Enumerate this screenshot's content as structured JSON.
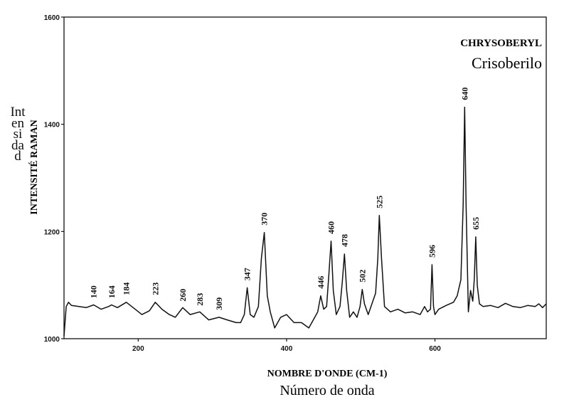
{
  "chart_data": {
    "type": "line",
    "title": "CHRYSOBERYL",
    "subtitle": "Crisoberilo",
    "xlabel": "NOMBRE D'ONDE (CM-1)",
    "xlabel_sub": "Número de onda",
    "ylabel": "INTENSITÉ RAMAN",
    "ylabel_sub": "Intensidad",
    "xlim": [
      100,
      750
    ],
    "ylim": [
      1000,
      1600
    ],
    "xticks": [
      200,
      400,
      600
    ],
    "yticks": [
      1000,
      1200,
      1400,
      1600
    ],
    "xtick_labels": [
      "200",
      "400",
      "600"
    ],
    "ytick_labels": [
      "1000",
      "1200",
      "1400",
      "1600"
    ],
    "grid": false,
    "peaks": [
      {
        "label": "140",
        "x": 140,
        "y": 1062
      },
      {
        "label": "164",
        "x": 164,
        "y": 1062
      },
      {
        "label": "184",
        "x": 184,
        "y": 1068
      },
      {
        "label": "223",
        "x": 223,
        "y": 1068
      },
      {
        "label": "260",
        "x": 260,
        "y": 1056
      },
      {
        "label": "283",
        "x": 283,
        "y": 1048
      },
      {
        "label": "309",
        "x": 309,
        "y": 1040
      },
      {
        "label": "347",
        "x": 347,
        "y": 1095
      },
      {
        "label": "370",
        "x": 370,
        "y": 1198
      },
      {
        "label": "446",
        "x": 446,
        "y": 1080
      },
      {
        "label": "460",
        "x": 460,
        "y": 1182
      },
      {
        "label": "478",
        "x": 478,
        "y": 1158
      },
      {
        "label": "502",
        "x": 502,
        "y": 1092
      },
      {
        "label": "525",
        "x": 525,
        "y": 1230
      },
      {
        "label": "596",
        "x": 596,
        "y": 1138
      },
      {
        "label": "640",
        "x": 640,
        "y": 1432
      },
      {
        "label": "655",
        "x": 655,
        "y": 1190
      }
    ],
    "series": [
      {
        "x": [
          100,
          103,
          106,
          110,
          120,
          130,
          140,
          150,
          160,
          164,
          172,
          184,
          195,
          205,
          215,
          223,
          232,
          242,
          250,
          260,
          270,
          283,
          295,
          309,
          320,
          332,
          338,
          343,
          347,
          351,
          356,
          362,
          366,
          370,
          374,
          378,
          384,
          392,
          400,
          410,
          420,
          430,
          438,
          442,
          446,
          450,
          454,
          457,
          460,
          463,
          467,
          472,
          475,
          478,
          481,
          485,
          490,
          495,
          499,
          502,
          505,
          510,
          515,
          520,
          523,
          525,
          528,
          532,
          540,
          550,
          560,
          570,
          580,
          586,
          590,
          594,
          596,
          598,
          600,
          605,
          615,
          625,
          630,
          635,
          638,
          640,
          642,
          645,
          648,
          651,
          653,
          655,
          657,
          660,
          665,
          675,
          685,
          695,
          705,
          715,
          725,
          735,
          740,
          745,
          750
        ],
        "y": [
          1005,
          1060,
          1068,
          1062,
          1060,
          1058,
          1063,
          1055,
          1060,
          1063,
          1058,
          1068,
          1056,
          1045,
          1052,
          1068,
          1055,
          1045,
          1040,
          1058,
          1045,
          1050,
          1035,
          1040,
          1035,
          1030,
          1030,
          1045,
          1095,
          1045,
          1040,
          1060,
          1150,
          1198,
          1080,
          1050,
          1020,
          1040,
          1045,
          1030,
          1030,
          1020,
          1040,
          1050,
          1080,
          1055,
          1060,
          1120,
          1182,
          1090,
          1045,
          1060,
          1105,
          1158,
          1090,
          1040,
          1050,
          1040,
          1060,
          1092,
          1065,
          1045,
          1065,
          1085,
          1150,
          1230,
          1150,
          1060,
          1050,
          1055,
          1048,
          1050,
          1045,
          1060,
          1050,
          1055,
          1138,
          1060,
          1045,
          1055,
          1062,
          1068,
          1080,
          1110,
          1250,
          1432,
          1250,
          1050,
          1090,
          1070,
          1110,
          1190,
          1100,
          1065,
          1060,
          1062,
          1058,
          1066,
          1060,
          1058,
          1062,
          1060,
          1065,
          1058,
          1065
        ]
      }
    ]
  }
}
